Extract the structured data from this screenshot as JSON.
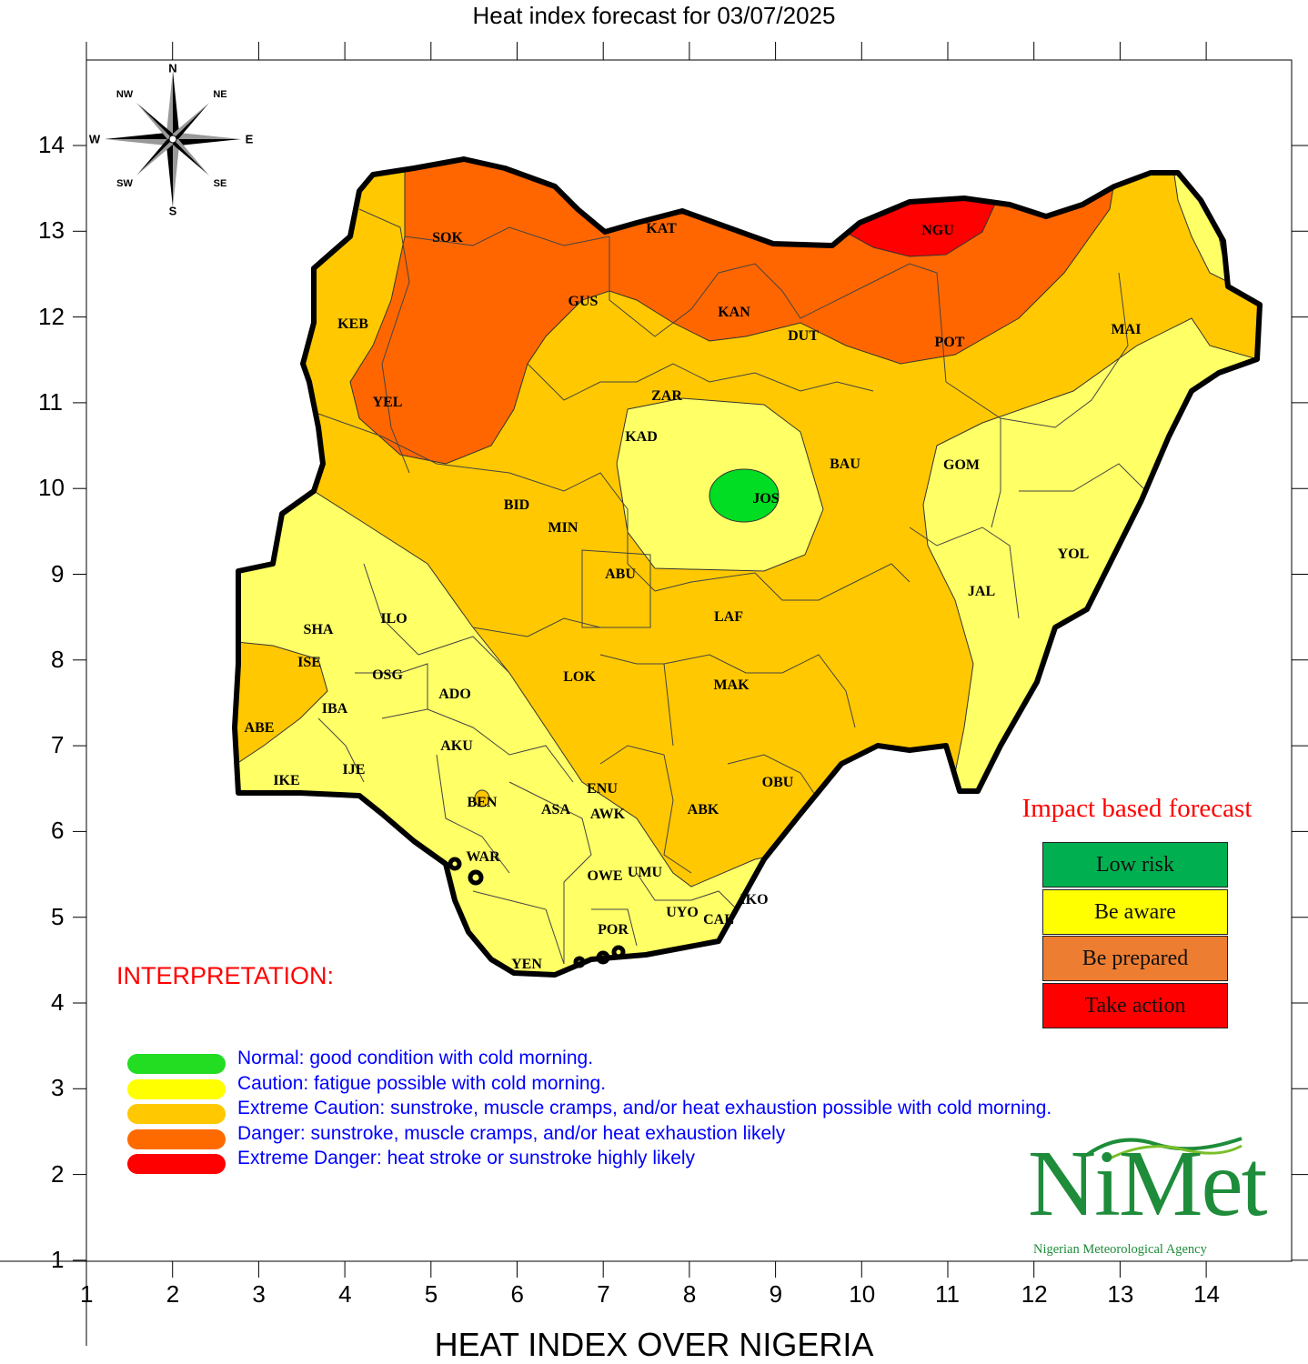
{
  "title": "Heat index forecast for 03/07/2025",
  "x_axis_title": "HEAT INDEX OVER NIGERIA",
  "x_ticks": [
    "1",
    "2",
    "3",
    "4",
    "5",
    "6",
    "7",
    "8",
    "9",
    "10",
    "11",
    "12",
    "13",
    "14"
  ],
  "y_ticks": [
    "14",
    "13",
    "12",
    "11",
    "10",
    "9",
    "8",
    "7",
    "6",
    "5",
    "4",
    "3",
    "2",
    "1"
  ],
  "compass": {
    "n": "N",
    "s": "S",
    "e": "E",
    "w": "W",
    "ne": "NE",
    "nw": "NW",
    "se": "SE",
    "sw": "SW"
  },
  "states": {
    "SOK": "SOK",
    "KAT": "KAT",
    "NGU": "NGU",
    "GUS": "GUS",
    "KEB": "KEB",
    "KAN": "KAN",
    "DUT": "DUT",
    "POT": "POT",
    "MAI": "MAI",
    "YEL": "YEL",
    "ZAR": "ZAR",
    "KAD": "KAD",
    "BAU": "BAU",
    "GOM": "GOM",
    "JOS": "JOS",
    "BID": "BID",
    "MIN": "MIN",
    "ABU": "ABU",
    "YOL": "YOL",
    "JAL": "JAL",
    "LAF": "LAF",
    "SHA": "SHA",
    "ILO": "ILO",
    "ISE": "ISE",
    "OSG": "OSG",
    "ADO": "ADO",
    "LOK": "LOK",
    "MAK": "MAK",
    "IBA": "IBA",
    "ABE": "ABE",
    "AKU": "AKU",
    "IJE": "IJE",
    "IKE": "IKE",
    "ENU": "ENU",
    "OBU": "OBU",
    "BEN": "BEN",
    "ASA": "ASA",
    "AWK": "AWK",
    "ABK": "ABK",
    "WAR": "WAR",
    "OWE": "OWE",
    "UMU": "UMU",
    "IKO": "IKO",
    "UYO": "UYO",
    "CAL": "CAL",
    "POR": "POR",
    "YEN": "YEN"
  },
  "impact_forecast": {
    "title": "Impact based forecast",
    "levels": [
      {
        "label": "Low risk",
        "color": "#00b050"
      },
      {
        "label": "Be aware",
        "color": "#ffff00"
      },
      {
        "label": "Be prepared",
        "color": "#ed7d31"
      },
      {
        "label": "Take action",
        "color": "#ff0000"
      }
    ]
  },
  "interpretation": {
    "heading": "INTERPRETATION:",
    "heading_color": "#ff0000",
    "text_color": "#0000ff",
    "items": [
      {
        "color": "#22dd22",
        "text": "Normal: good condition with cold morning."
      },
      {
        "color": "#ffff00",
        "text": "Caution: fatigue possible  with cold morning."
      },
      {
        "color": "#ffc800",
        "text": "Extreme Caution: sunstroke, muscle cramps, and/or heat exhaustion possible  with cold morning."
      },
      {
        "color": "#ff6a00",
        "text": "Danger: sunstroke, muscle cramps, and/or heat exhaustion likely"
      },
      {
        "color": "#ff0000",
        "text": "Extreme Danger: heat stroke or sunstroke highly likely"
      }
    ]
  },
  "logo": {
    "word": "NiMet",
    "agency": "Nigerian Meteorological Agency",
    "color": "#1e8c3a",
    "accent": "#7bbf2a"
  },
  "colors": {
    "normal": "#00dd22",
    "caution": "#ffff66",
    "extreme_caution": "#ffc800",
    "danger": "#ff6600",
    "extreme_danger": "#ff0000"
  }
}
